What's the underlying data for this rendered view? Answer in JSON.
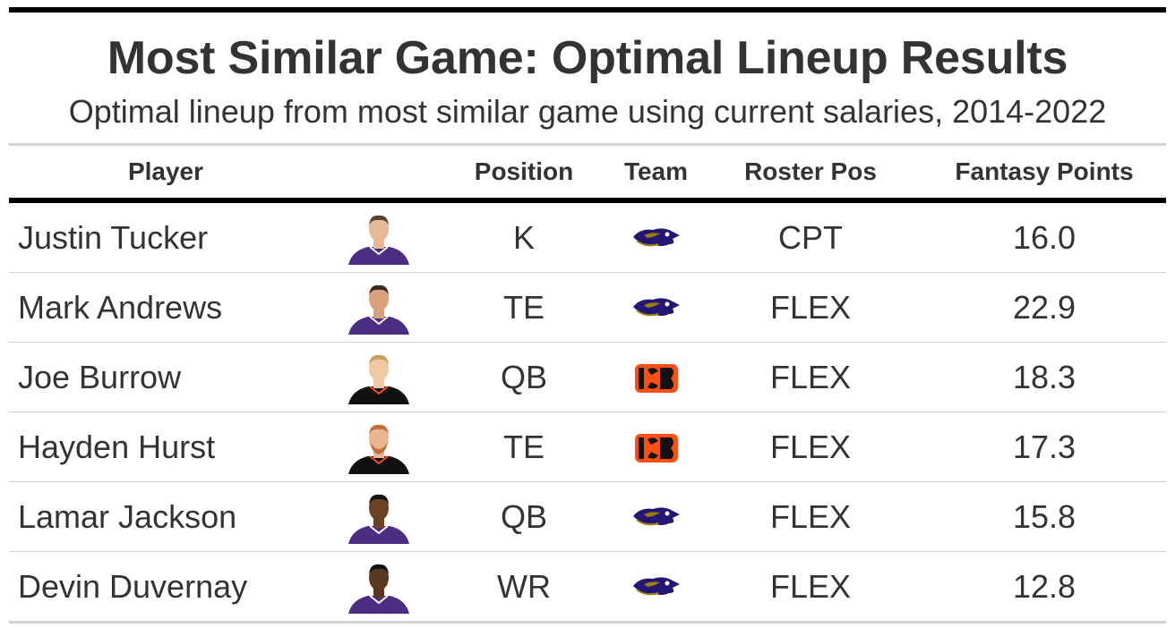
{
  "title": "Most Similar Game: Optimal Lineup Results",
  "subtitle": "Optimal lineup from most similar game using current salaries, 2014-2022",
  "columns": {
    "player": "Player",
    "position": "Position",
    "team": "Team",
    "roster_pos": "Roster Pos",
    "fantasy_points": "Fantasy Points"
  },
  "colors": {
    "ravens_purple": "#5b3c9e",
    "bengals_orange": "#fb4f14",
    "bengals_black": "#111111",
    "text": "#333333",
    "rule": "#d3d3d3"
  },
  "rows": [
    {
      "player": "Justin Tucker",
      "headshot_icon": "player-headshot-icon",
      "position": "K",
      "team_icon": "ravens-logo-icon",
      "roster_pos": "CPT",
      "fantasy_points": "16.0"
    },
    {
      "player": "Mark Andrews",
      "headshot_icon": "player-headshot-icon",
      "position": "TE",
      "team_icon": "ravens-logo-icon",
      "roster_pos": "FLEX",
      "fantasy_points": "22.9"
    },
    {
      "player": "Joe Burrow",
      "headshot_icon": "player-headshot-icon",
      "position": "QB",
      "team_icon": "bengals-logo-icon",
      "roster_pos": "FLEX",
      "fantasy_points": "18.3"
    },
    {
      "player": "Hayden Hurst",
      "headshot_icon": "player-headshot-icon",
      "position": "TE",
      "team_icon": "bengals-logo-icon",
      "roster_pos": "FLEX",
      "fantasy_points": "17.3"
    },
    {
      "player": "Lamar Jackson",
      "headshot_icon": "player-headshot-icon",
      "position": "QB",
      "team_icon": "ravens-logo-icon",
      "roster_pos": "FLEX",
      "fantasy_points": "15.8"
    },
    {
      "player": "Devin Duvernay",
      "headshot_icon": "player-headshot-icon",
      "position": "WR",
      "team_icon": "ravens-logo-icon",
      "roster_pos": "FLEX",
      "fantasy_points": "12.8"
    }
  ]
}
